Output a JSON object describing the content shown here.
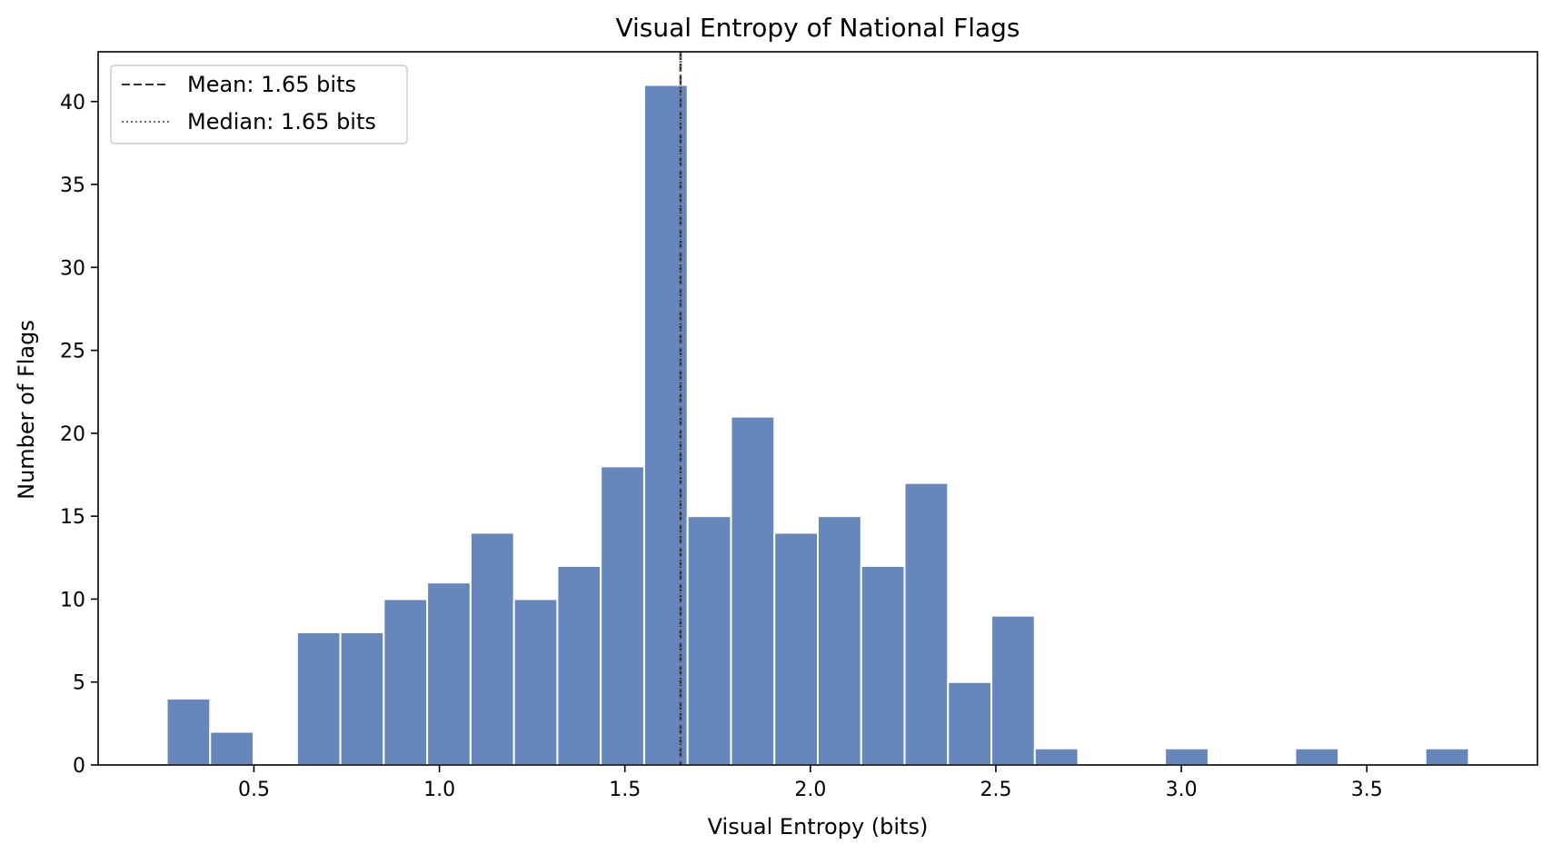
{
  "chart_data": {
    "type": "bar",
    "title": "Visual Entropy of National Flags",
    "xlabel": "Visual Entropy (bits)",
    "ylabel": "Number of Flags",
    "xlim": [
      0.08,
      3.96
    ],
    "ylim": [
      0,
      43
    ],
    "xticks": [
      0.5,
      1.0,
      1.5,
      2.0,
      2.5,
      3.0,
      3.5
    ],
    "xtick_labels": [
      "0.5",
      "1.0",
      "1.5",
      "2.0",
      "2.5",
      "3.0",
      "3.5"
    ],
    "yticks": [
      0,
      5,
      10,
      15,
      20,
      25,
      30,
      35,
      40
    ],
    "ytick_labels": [
      "0",
      "5",
      "10",
      "15",
      "20",
      "25",
      "30",
      "35",
      "40"
    ],
    "bin_edges": [
      0.265,
      0.382,
      0.499,
      0.616,
      0.733,
      0.85,
      0.967,
      1.084,
      1.201,
      1.318,
      1.435,
      1.552,
      1.669,
      1.786,
      1.903,
      2.02,
      2.137,
      2.254,
      2.371,
      2.488,
      2.605,
      2.722,
      2.839,
      2.956,
      3.073,
      3.19,
      3.307,
      3.424,
      3.541,
      3.658,
      3.775
    ],
    "counts": [
      4,
      2,
      0,
      8,
      8,
      10,
      11,
      14,
      10,
      12,
      18,
      41,
      15,
      21,
      14,
      15,
      12,
      17,
      5,
      9,
      1,
      0,
      0,
      1,
      0,
      0,
      1,
      0,
      0,
      1
    ],
    "bar_color": "#6787bc",
    "edge_color": "#ffffff",
    "reference_lines": [
      {
        "label": "Mean: 1.65 bits",
        "x": 1.65,
        "style": "dashed",
        "color": "#333333"
      },
      {
        "label": "Median: 1.65 bits",
        "x": 1.65,
        "style": "dotted",
        "color": "#666666"
      }
    ],
    "legend_position": "top-left",
    "grid": false
  }
}
